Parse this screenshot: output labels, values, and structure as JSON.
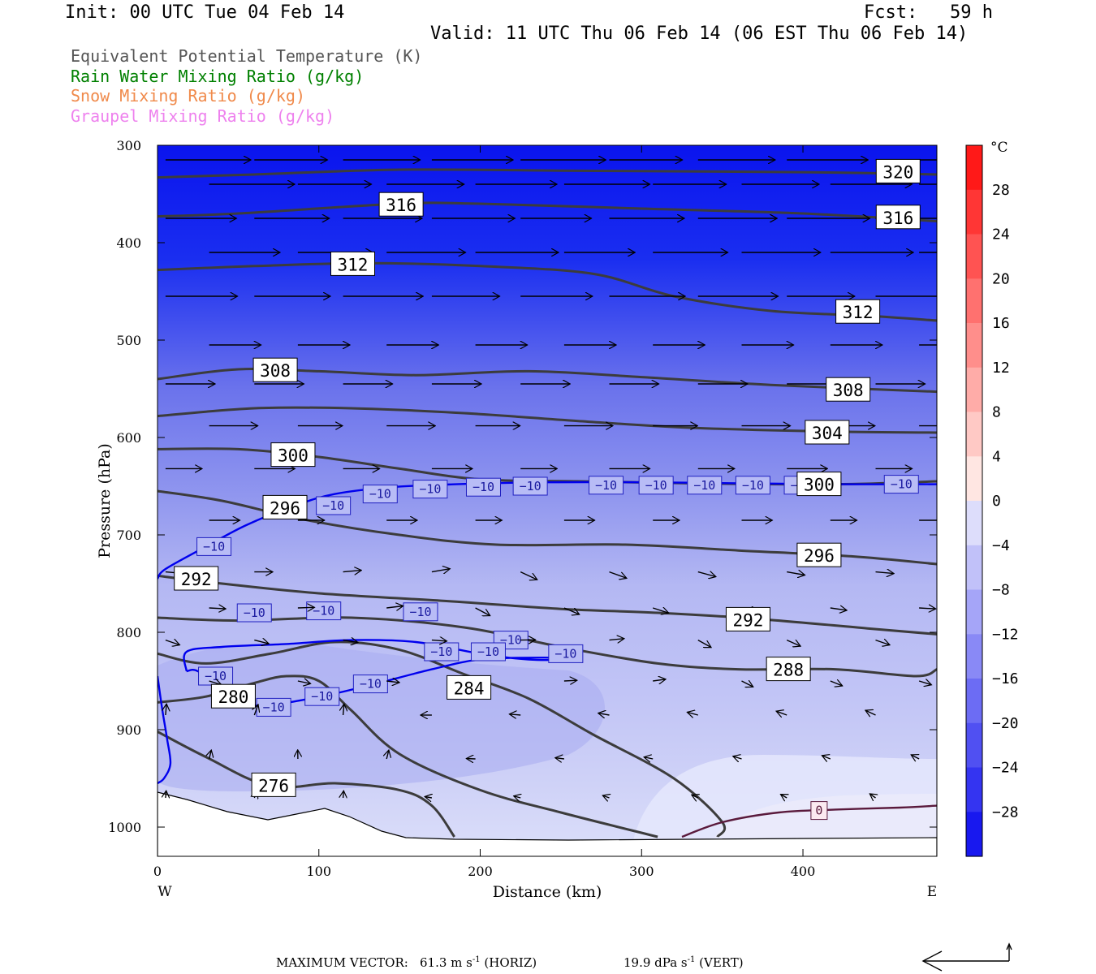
{
  "header": {
    "init": "Init: 00 UTC Tue 04 Feb 14",
    "fcst": "Fcst:   59 h",
    "valid": "Valid: 11 UTC Thu 06 Feb 14 (06 EST Thu 06 Feb 14)"
  },
  "legend": [
    {
      "text": "Equivalent Potential Temperature (K)",
      "color": "#555555"
    },
    {
      "text": "Rain Water Mixing Ratio (g/kg)",
      "color": "#008000"
    },
    {
      "text": "Snow Mixing Ratio (g/kg)",
      "color": "#f08a4b"
    },
    {
      "text": "Graupel Mixing Ratio (g/kg)",
      "color": "#ee82ee"
    }
  ],
  "footer": {
    "max_vector_label": "MAXIMUM VECTOR:",
    "horiz_value": "61.3 m s",
    "horiz_exp": "-1",
    "horiz_tag": "(HORIZ)",
    "vert_value": "19.9 dPa s",
    "vert_exp": "-1",
    "vert_tag": "(VERT)"
  },
  "chart_data": {
    "type": "contour",
    "xlabel": "Distance (km)",
    "ylabel": "Pressure (hPa)",
    "x_range": [
      0,
      483
    ],
    "y_range": [
      300,
      1030
    ],
    "y_scale": "linear-inverted",
    "x_ticks": [
      0,
      100,
      200,
      300,
      400
    ],
    "y_ticks": [
      300,
      400,
      500,
      600,
      700,
      800,
      900,
      1000
    ],
    "x_end_labels": {
      "left": "W",
      "right": "E"
    },
    "colorbar": {
      "unit": "°C",
      "tick_labels": [
        "28",
        "24",
        "20",
        "16",
        "12",
        "8",
        "4",
        "0",
        "−4",
        "−8",
        "−12",
        "−16",
        "−20",
        "−24",
        "−28"
      ],
      "min": -32,
      "max": 32,
      "step": 4
    },
    "theta_e_contours": [
      {
        "level": 320,
        "label": "320",
        "label_at": [
          459,
          327
        ],
        "points": [
          [
            0,
            333
          ],
          [
            60,
            330
          ],
          [
            150,
            325
          ],
          [
            250,
            326
          ],
          [
            350,
            327
          ],
          [
            420,
            328
          ],
          [
            483,
            330
          ]
        ]
      },
      {
        "level": 316,
        "label": "316",
        "label_at": [
          151,
          361
        ],
        "points": [
          [
            0,
            373
          ],
          [
            50,
            370
          ],
          [
            150,
            360
          ],
          [
            200,
            360
          ],
          [
            300,
            365
          ],
          [
            400,
            370
          ],
          [
            483,
            378
          ]
        ]
      },
      {
        "level": 316,
        "label": "316",
        "label_at": [
          459,
          374
        ],
        "points": []
      },
      {
        "level": 312,
        "label": "312",
        "label_at": [
          121,
          422
        ],
        "points": [
          [
            0,
            428
          ],
          [
            60,
            424
          ],
          [
            130,
            421
          ],
          [
            200,
            424
          ],
          [
            270,
            432
          ],
          [
            320,
            455
          ],
          [
            380,
            470
          ],
          [
            440,
            475
          ],
          [
            483,
            480
          ]
        ]
      },
      {
        "level": 312,
        "label": "312",
        "label_at": [
          434,
          471
        ],
        "points": []
      },
      {
        "level": 308,
        "label": "308",
        "label_at": [
          73,
          531
        ],
        "points": [
          [
            0,
            540
          ],
          [
            50,
            530
          ],
          [
            100,
            532
          ],
          [
            160,
            536
          ],
          [
            230,
            532
          ],
          [
            300,
            538
          ],
          [
            380,
            546
          ],
          [
            483,
            553
          ]
        ]
      },
      {
        "level": 308,
        "label": "308",
        "label_at": [
          428,
          551
        ],
        "points": []
      },
      {
        "level": 304,
        "label": "304",
        "label_at": [
          415,
          595
        ],
        "points": [
          [
            0,
            578
          ],
          [
            60,
            570
          ],
          [
            120,
            570
          ],
          [
            190,
            575
          ],
          [
            260,
            583
          ],
          [
            330,
            590
          ],
          [
            420,
            594
          ],
          [
            483,
            595
          ]
        ]
      },
      {
        "level": 300,
        "label": "300",
        "label_at": [
          84,
          618
        ],
        "points": [
          [
            0,
            612
          ],
          [
            50,
            612
          ],
          [
            100,
            620
          ],
          [
            150,
            632
          ],
          [
            200,
            643
          ],
          [
            260,
            645
          ],
          [
            330,
            647
          ],
          [
            420,
            648
          ],
          [
            483,
            645
          ]
        ]
      },
      {
        "level": 300,
        "label": "300",
        "label_at": [
          410,
          648
        ],
        "points": []
      },
      {
        "level": 296,
        "label": "296",
        "label_at": [
          79,
          672
        ],
        "points": [
          [
            0,
            655
          ],
          [
            40,
            665
          ],
          [
            90,
            684
          ],
          [
            150,
            700
          ],
          [
            210,
            710
          ],
          [
            290,
            710
          ],
          [
            360,
            716
          ],
          [
            430,
            722
          ],
          [
            483,
            730
          ]
        ]
      },
      {
        "level": 296,
        "label": "296",
        "label_at": [
          410,
          721
        ],
        "points": []
      },
      {
        "level": 292,
        "label": "292",
        "label_at": [
          24,
          745
        ],
        "points": [
          [
            0,
            742
          ],
          [
            40,
            750
          ],
          [
            100,
            760
          ],
          [
            180,
            768
          ],
          [
            250,
            776
          ],
          [
            310,
            780
          ],
          [
            370,
            786
          ],
          [
            440,
            796
          ],
          [
            483,
            802
          ]
        ]
      },
      {
        "level": 292,
        "label": "292",
        "label_at": [
          366,
          787
        ],
        "points": []
      },
      {
        "level": 288,
        "label": "288",
        "label_at": [
          391,
          838
        ],
        "points": [
          [
            0,
            785
          ],
          [
            50,
            788
          ],
          [
            120,
            785
          ],
          [
            190,
            795
          ],
          [
            250,
            815
          ],
          [
            310,
            832
          ],
          [
            360,
            838
          ],
          [
            420,
            838
          ],
          [
            470,
            845
          ],
          [
            483,
            838
          ]
        ]
      },
      {
        "level": 284,
        "label": "284",
        "label_at": [
          193,
          857
        ],
        "points": [
          [
            0,
            822
          ],
          [
            30,
            832
          ],
          [
            70,
            822
          ],
          [
            110,
            810
          ],
          [
            150,
            818
          ],
          [
            190,
            843
          ],
          [
            230,
            868
          ],
          [
            270,
            905
          ],
          [
            320,
            950
          ],
          [
            350,
            995
          ],
          [
            347,
            1010
          ]
        ]
      },
      {
        "level": 280,
        "label": "280",
        "label_at": [
          47,
          866
        ],
        "points": [
          [
            0,
            872
          ],
          [
            30,
            866
          ],
          [
            60,
            852
          ],
          [
            80,
            845
          ],
          [
            100,
            850
          ],
          [
            120,
            880
          ],
          [
            150,
            925
          ],
          [
            200,
            962
          ],
          [
            250,
            985
          ],
          [
            310,
            1010
          ]
        ]
      },
      {
        "level": 276,
        "label": "276",
        "label_at": [
          72,
          957
        ],
        "points": [
          [
            0,
            902
          ],
          [
            30,
            928
          ],
          [
            70,
            958
          ],
          [
            110,
            955
          ],
          [
            150,
            962
          ],
          [
            170,
            978
          ],
          [
            184,
            1010
          ]
        ]
      }
    ],
    "isotherm_minus10": {
      "level": -10,
      "label": "−10",
      "color": "#0000ee"
    },
    "isotherm_zero": {
      "level": 0,
      "label": "0",
      "color": "#5a1a3c"
    },
    "max_wind_speed_ms": 61.3,
    "max_vert_velocity_dPa_s": 19.9
  }
}
